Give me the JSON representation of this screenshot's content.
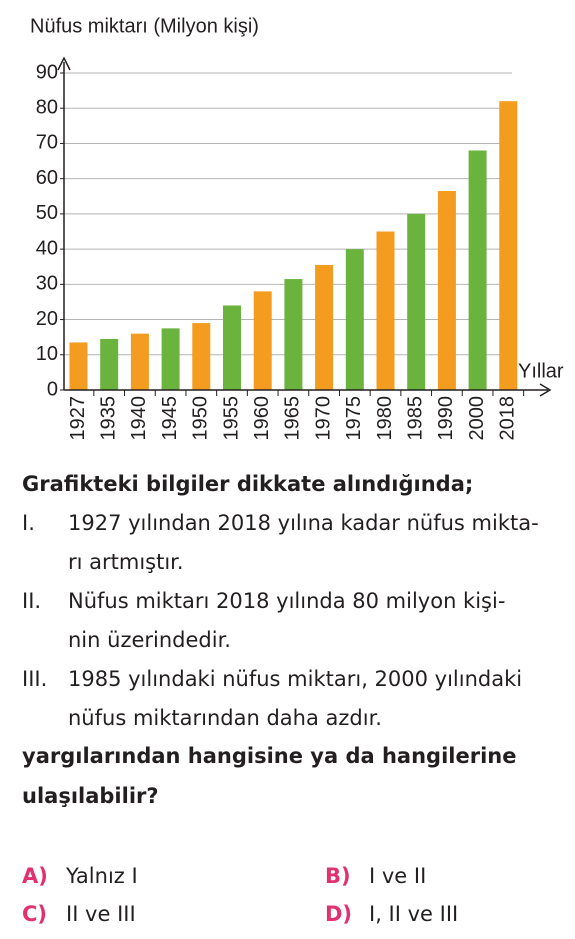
{
  "chart_data": {
    "type": "bar",
    "y_axis_label": "Nüfus miktarı (Milyon kişi)",
    "x_axis_label": "Yıllar",
    "categories": [
      "1927",
      "1935",
      "1940",
      "1945",
      "1950",
      "1955",
      "1960",
      "1965",
      "1970",
      "1975",
      "1980",
      "1985",
      "1990",
      "2000",
      "2018"
    ],
    "values": [
      13.5,
      14.5,
      16,
      17.5,
      19,
      24,
      28,
      31.5,
      35.5,
      40,
      45,
      50,
      56.5,
      68,
      82
    ],
    "colors": [
      "#f39c1f",
      "#6ab43e",
      "#f39c1f",
      "#6ab43e",
      "#f39c1f",
      "#6ab43e",
      "#f39c1f",
      "#6ab43e",
      "#f39c1f",
      "#6ab43e",
      "#f39c1f",
      "#6ab43e",
      "#f39c1f",
      "#6ab43e",
      "#f39c1f"
    ],
    "ylim": [
      0,
      90
    ],
    "yticks": [
      0,
      10,
      20,
      30,
      40,
      50,
      60,
      70,
      80,
      90
    ],
    "grid": true
  },
  "question": {
    "intro": "Grafikteki bilgiler dikkate alındığında;",
    "items": [
      {
        "num": "I.",
        "lines": [
          "1927 yılından 2018 yılına kadar nüfus mikta-",
          "rı artmıştır."
        ]
      },
      {
        "num": "II.",
        "lines": [
          "Nüfus miktarı 2018 yılında 80 milyon kişi-",
          "nin üzerindedir."
        ]
      },
      {
        "num": "III.",
        "lines": [
          "1985 yılındaki nüfus miktarı, 2000 yılındaki",
          "nüfus miktarından daha azdır."
        ]
      }
    ],
    "prompt": [
      "yargılarından hangisine ya da hangilerine",
      "ulaşılabilir?"
    ],
    "options": [
      {
        "letter": "A)",
        "text": "Yalnız I"
      },
      {
        "letter": "B)",
        "text": "I ve II"
      },
      {
        "letter": "C)",
        "text": "II ve III"
      },
      {
        "letter": "D)",
        "text": "I, II ve III"
      }
    ]
  }
}
